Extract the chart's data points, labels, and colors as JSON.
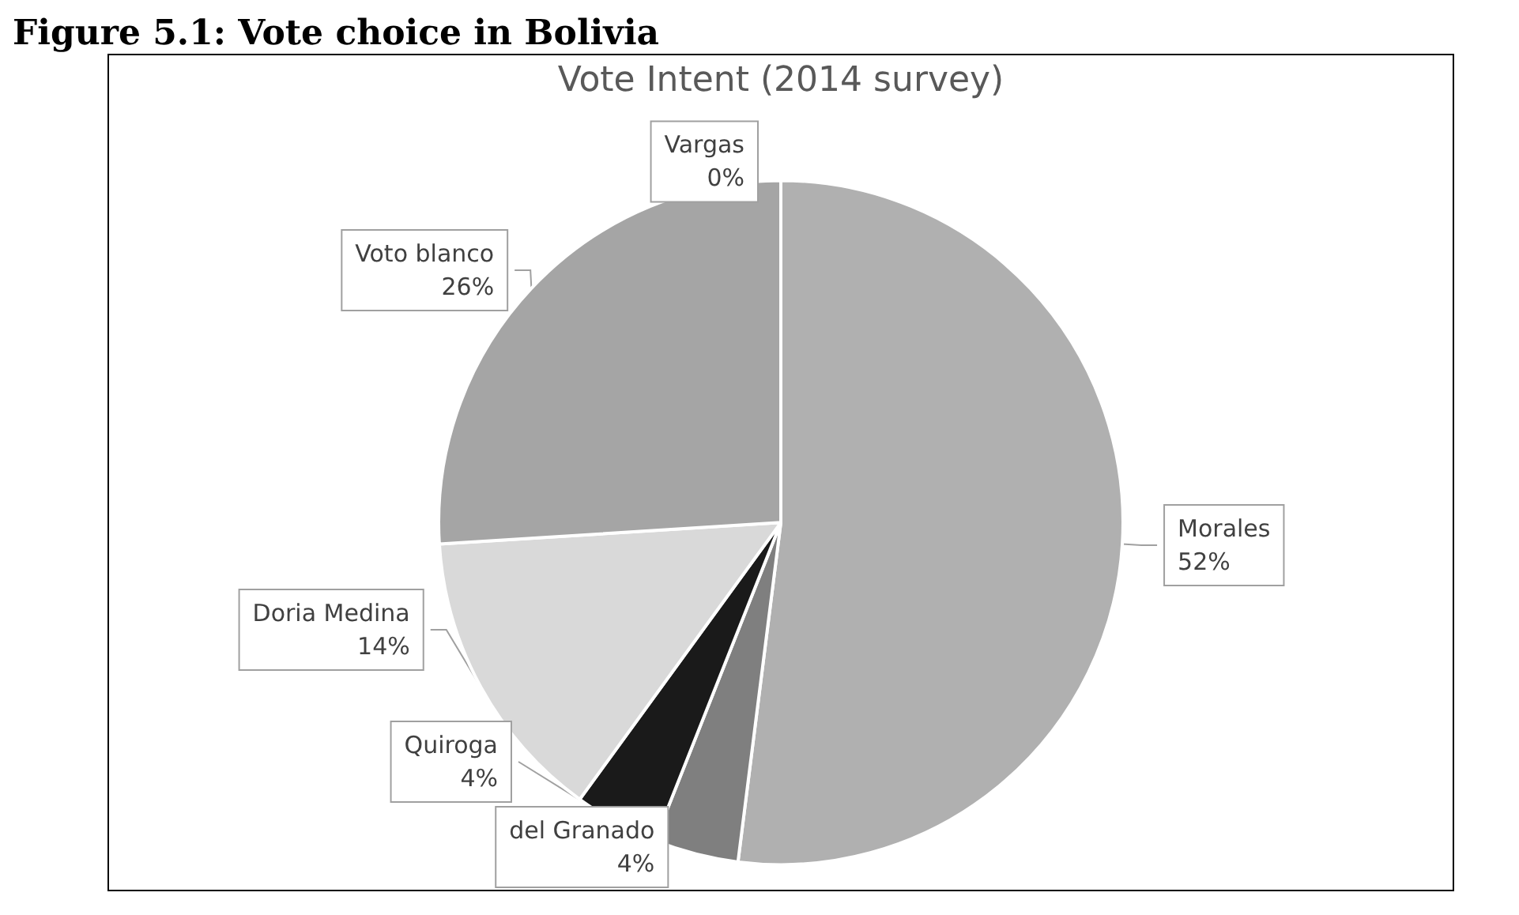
{
  "chart_data": {
    "type": "pie",
    "title": "Figure 5.1: Vote choice in Bolivia",
    "subtitle": "Vote Intent (2014 survey)",
    "categories": [
      "Morales",
      "del Granado",
      "Quiroga",
      "Doria Medina",
      "Voto blanco",
      "Vargas"
    ],
    "values": [
      52,
      4,
      4,
      14,
      26,
      0
    ],
    "value_labels": [
      "52%",
      "4%",
      "4%",
      "14%",
      "26%",
      "0%"
    ],
    "colors": [
      "#b0b0b0",
      "#7f7f7f",
      "#1a1a1a",
      "#d9d9d9",
      "#a5a5a5",
      "#e6e6e6"
    ],
    "legend": false
  }
}
